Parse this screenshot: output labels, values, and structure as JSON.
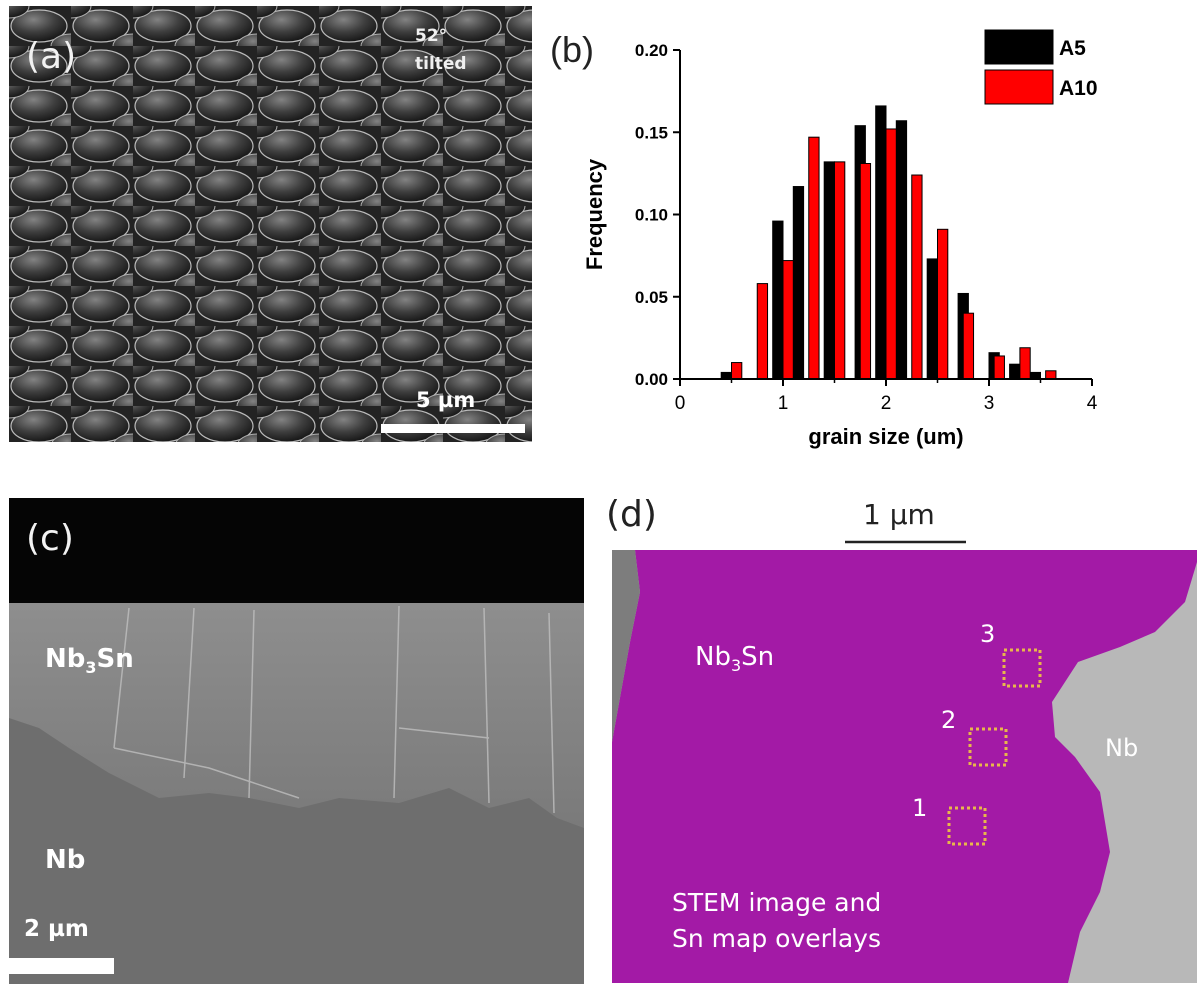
{
  "panels": {
    "a": {
      "label": "(a)",
      "tilt_line1": "52°",
      "tilt_line2": "tilted",
      "scale_label": "5 µm"
    },
    "c": {
      "label": "(c)",
      "layer_top_prefix": "Nb",
      "layer_top_sub": "3",
      "layer_top_suffix": "Sn",
      "layer_bottom": "Nb",
      "scale_label": "2 µm"
    },
    "d": {
      "label": "(d)",
      "scale_label": "1 µm",
      "phase_prefix": "Nb",
      "phase_sub": "3",
      "phase_suffix": "Sn",
      "substrate": "Nb",
      "markers": [
        "3",
        "2",
        "1"
      ],
      "caption_line1": "STEM image and",
      "caption_line2": "Sn map overlays",
      "colors": {
        "sn_map": "#a31aa6",
        "nb_region": "#b8b8b8",
        "marker_box": "#e8b84a"
      }
    }
  },
  "chart_data": {
    "panel_label": "(b)",
    "type": "bar",
    "xlabel": "grain size (um)",
    "ylabel": "Frequency",
    "xlim": [
      0,
      4
    ],
    "ylim": [
      0,
      0.2
    ],
    "xticks": [
      "0",
      "1",
      "2",
      "3",
      "4"
    ],
    "yticks": [
      "0.00",
      "0.05",
      "0.10",
      "0.15",
      "0.20"
    ],
    "bin_width": 0.1,
    "legend_position": "top-right",
    "series": [
      {
        "name": "A5",
        "color": "#000000",
        "x": [
          0.45,
          0.65,
          0.95,
          1.15,
          1.45,
          1.75,
          1.95,
          2.15,
          2.45,
          2.75,
          3.05,
          3.25,
          3.45
        ],
        "values": [
          0.004,
          0.0,
          0.096,
          0.117,
          0.132,
          0.154,
          0.166,
          0.157,
          0.073,
          0.052,
          0.016,
          0.009,
          0.004
        ]
      },
      {
        "name": "A10",
        "color": "#ff0000",
        "x": [
          0.55,
          0.8,
          1.05,
          1.3,
          1.55,
          1.8,
          2.05,
          2.3,
          2.55,
          2.8,
          3.1,
          3.35,
          3.6
        ],
        "values": [
          0.01,
          0.058,
          0.072,
          0.147,
          0.132,
          0.131,
          0.152,
          0.124,
          0.091,
          0.04,
          0.014,
          0.019,
          0.005
        ]
      }
    ]
  }
}
